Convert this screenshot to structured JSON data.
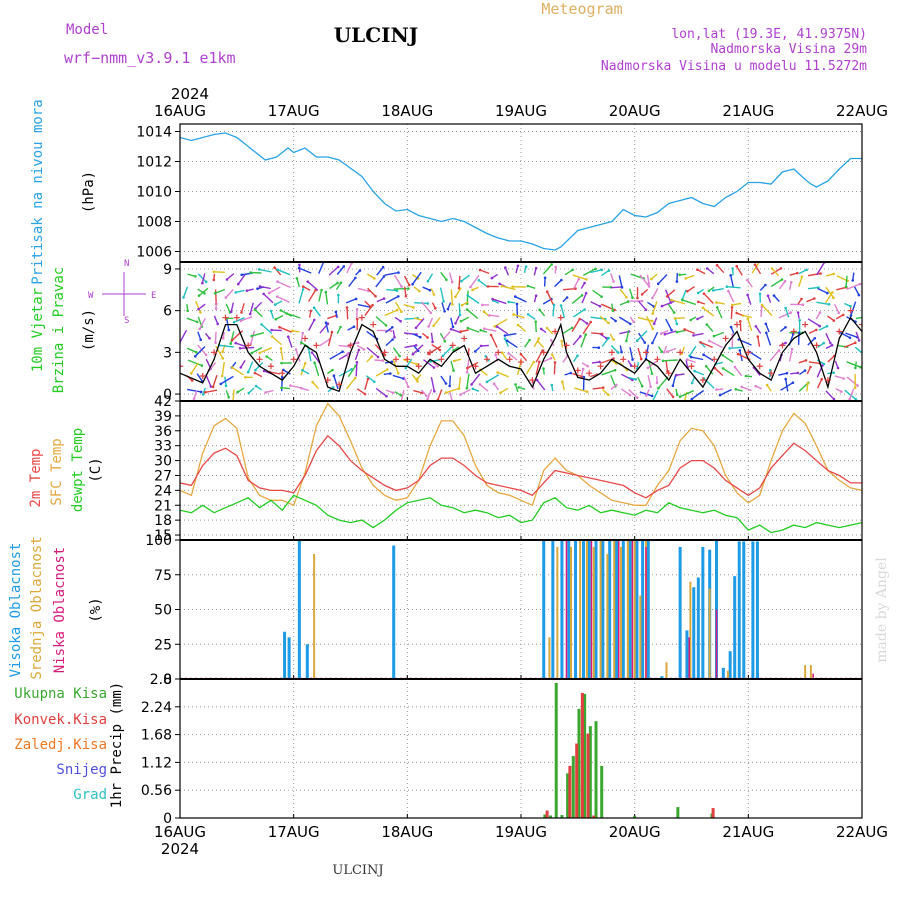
{
  "header": {
    "model_label": "Model",
    "model_name": "wrf−nmm_v3.9.1 e1km",
    "station": "ULCINJ",
    "product": "Meteogram",
    "location": "lon,lat (19.3E, 41.9375N)",
    "altitude": "Nadmorska Visina 29m",
    "model_altitude": "Nadmorska Visina u modelu 11.5272m",
    "footer_station": "ULCINJ",
    "watermark": "made by Angel"
  },
  "colors": {
    "pressure": "#29a3e6",
    "temp_2m": "#e84848",
    "temp_sfc": "#e6a840",
    "dewpoint": "#22cc22",
    "cloud_high": "#1e9be6",
    "cloud_mid": "#d9a838",
    "cloud_low": "#d61b7b",
    "precip_total": "#3aa830",
    "precip_conv": "#e04040",
    "precip_strat": "#f07828",
    "snow": "#5050e0",
    "hail": "#30c0c0",
    "header_purple": "#b040d0",
    "header_orange": "#e0b060"
  },
  "chart_data": {
    "type": "line",
    "year": "2024",
    "x_labels": [
      "16AUG",
      "17AUG",
      "18AUG",
      "19AUG",
      "20AUG",
      "21AUG",
      "22AUG"
    ],
    "x_range_days": [
      0,
      6
    ],
    "panels": [
      {
        "id": "pressure",
        "ylabel_left": "Pritisak na nivou mora",
        "unit": "(hPa)",
        "ylim": [
          1005.3,
          1014.5
        ],
        "yticks": [
          1006,
          1008,
          1010,
          1012,
          1014
        ],
        "series": [
          {
            "key": "pressure",
            "x": [
              0,
              0.1,
              0.3,
              0.4,
              0.5,
              0.6,
              0.7,
              0.75,
              0.85,
              0.95,
              1.0,
              1.1,
              1.2,
              1.3,
              1.4,
              1.6,
              1.7,
              1.8,
              1.9,
              2.0,
              2.1,
              2.3,
              2.4,
              2.5,
              2.6,
              2.7,
              2.8,
              2.9,
              3.0,
              3.1,
              3.2,
              3.3,
              3.35,
              3.5,
              3.6,
              3.7,
              3.8,
              3.9,
              4.0,
              4.1,
              4.2,
              4.3,
              4.4,
              4.5,
              4.6,
              4.7,
              4.8,
              4.9,
              5.0,
              5.1,
              5.2,
              5.3,
              5.4,
              5.5,
              5.55,
              5.6,
              5.7,
              5.8,
              5.9,
              6.0
            ],
            "y": [
              1013.6,
              1013.4,
              1013.8,
              1013.9,
              1013.6,
              1013.0,
              1012.4,
              1012.1,
              1012.3,
              1012.9,
              1012.6,
              1012.9,
              1012.3,
              1012.3,
              1012.1,
              1011.0,
              1010.0,
              1009.2,
              1008.7,
              1008.8,
              1008.4,
              1008.0,
              1008.2,
              1008.0,
              1007.6,
              1007.2,
              1006.9,
              1006.7,
              1006.7,
              1006.5,
              1006.2,
              1006.1,
              1006.3,
              1007.4,
              1007.6,
              1007.8,
              1008.0,
              1008.8,
              1008.4,
              1008.3,
              1008.6,
              1009.2,
              1009.4,
              1009.6,
              1009.2,
              1009.0,
              1009.6,
              1010.0,
              1010.6,
              1010.6,
              1010.5,
              1011.3,
              1011.5,
              1010.8,
              1010.5,
              1010.3,
              1010.7,
              1011.5,
              1012.2,
              1012.2
            ]
          }
        ]
      },
      {
        "id": "wind",
        "ylabel_left": [
          "10m Vjetar",
          "Brzina i Pravac"
        ],
        "unit": "(m/s)",
        "compass": {
          "w": "W",
          "e": "E",
          "n": "N",
          "s": "S"
        },
        "ylim": [
          -0.5,
          9.5
        ],
        "yticks": [
          0,
          3,
          6,
          9
        ],
        "series": [
          {
            "key": "wind_speed",
            "x": [
              0,
              0.2,
              0.3,
              0.4,
              0.5,
              0.6,
              0.7,
              0.8,
              0.9,
              1.0,
              1.1,
              1.2,
              1.3,
              1.4,
              1.5,
              1.6,
              1.7,
              1.8,
              1.9,
              2.0,
              2.1,
              2.2,
              2.3,
              2.4,
              2.5,
              2.6,
              2.7,
              2.8,
              2.9,
              3.0,
              3.1,
              3.2,
              3.3,
              3.35,
              3.4,
              3.5,
              3.6,
              3.7,
              3.8,
              3.9,
              4.0,
              4.1,
              4.2,
              4.3,
              4.4,
              4.5,
              4.6,
              4.7,
              4.8,
              4.9,
              5.0,
              5.1,
              5.2,
              5.3,
              5.4,
              5.5,
              5.6,
              5.7,
              5.8,
              5.9,
              6.0
            ],
            "y": [
              1.5,
              0.8,
              2.5,
              5.0,
              5.0,
              3.0,
              2.0,
              1.5,
              1.0,
              2.0,
              3.5,
              3.0,
              0.5,
              0.2,
              3.0,
              5.0,
              4.5,
              2.5,
              2.0,
              2.0,
              1.5,
              2.5,
              2.0,
              3.0,
              3.5,
              1.5,
              2.0,
              2.5,
              2.0,
              1.8,
              0.5,
              2.5,
              4.0,
              5.0,
              3.0,
              1.2,
              1.0,
              1.5,
              2.5,
              2.0,
              1.5,
              2.5,
              2.0,
              1.0,
              2.5,
              1.5,
              0.5,
              2.0,
              3.5,
              4.5,
              2.5,
              1.5,
              1.0,
              3.0,
              4.0,
              4.5,
              3.0,
              0.5,
              4.0,
              5.5,
              4.5
            ]
          }
        ]
      },
      {
        "id": "temperature",
        "ylabel_left": [
          "2m Temp",
          "SFC Temp",
          "dewpt Temp"
        ],
        "unit": "(C)",
        "ylim": [
          14,
          42
        ],
        "yticks": [
          15,
          18,
          21,
          24,
          27,
          30,
          33,
          36,
          39,
          42
        ],
        "series": [
          {
            "key": "temp_2m",
            "name": "2m Temp",
            "x": [
              0,
              0.1,
              0.2,
              0.3,
              0.4,
              0.5,
              0.6,
              0.7,
              0.8,
              0.9,
              1.0,
              1.1,
              1.2,
              1.3,
              1.4,
              1.5,
              1.6,
              1.7,
              1.8,
              1.9,
              2.0,
              2.1,
              2.2,
              2.3,
              2.4,
              2.5,
              2.6,
              2.7,
              2.8,
              2.9,
              3.0,
              3.1,
              3.2,
              3.3,
              3.4,
              3.5,
              3.6,
              3.7,
              3.8,
              3.9,
              4.0,
              4.1,
              4.2,
              4.3,
              4.4,
              4.5,
              4.6,
              4.7,
              4.8,
              4.9,
              5.0,
              5.1,
              5.2,
              5.3,
              5.4,
              5.5,
              5.6,
              5.7,
              5.8,
              5.9,
              6.0
            ],
            "y": [
              25.5,
              25.0,
              29.0,
              31.5,
              32.5,
              31.0,
              26.0,
              24.5,
              24.0,
              24.0,
              23.5,
              27.0,
              32.0,
              35.0,
              33.0,
              30.0,
              28.0,
              26.5,
              25.0,
              24.0,
              24.5,
              26.0,
              29.0,
              30.5,
              30.5,
              29.0,
              27.0,
              25.5,
              25.0,
              24.5,
              24.0,
              23.0,
              25.5,
              28.0,
              27.5,
              27.0,
              26.5,
              26.0,
              25.5,
              25.0,
              23.5,
              22.5,
              24.0,
              25.0,
              28.5,
              30.0,
              30.0,
              28.5,
              26.0,
              24.5,
              23.0,
              24.5,
              28.5,
              31.0,
              33.5,
              32.0,
              30.0,
              28.0,
              27.0,
              25.5,
              25.5
            ]
          },
          {
            "key": "temp_sfc",
            "name": "SFC Temp",
            "x": [
              0,
              0.1,
              0.2,
              0.3,
              0.4,
              0.5,
              0.6,
              0.7,
              0.8,
              0.9,
              1.0,
              1.1,
              1.2,
              1.3,
              1.4,
              1.5,
              1.6,
              1.7,
              1.8,
              1.9,
              2.0,
              2.1,
              2.2,
              2.3,
              2.4,
              2.5,
              2.6,
              2.7,
              2.8,
              2.9,
              3.0,
              3.1,
              3.2,
              3.3,
              3.4,
              3.5,
              3.6,
              3.7,
              3.8,
              3.9,
              4.0,
              4.1,
              4.2,
              4.3,
              4.4,
              4.5,
              4.6,
              4.7,
              4.8,
              4.9,
              5.0,
              5.1,
              5.2,
              5.3,
              5.4,
              5.5,
              5.6,
              5.7,
              5.8,
              5.9,
              6.0
            ],
            "y": [
              24.0,
              23.0,
              31.5,
              37.0,
              38.5,
              36.5,
              26.5,
              23.0,
              22.0,
              22.0,
              21.0,
              27.5,
              37.0,
              41.5,
              39.0,
              34.0,
              28.5,
              25.0,
              23.0,
              22.0,
              22.5,
              26.0,
              33.0,
              38.0,
              38.0,
              35.0,
              29.0,
              25.0,
              23.5,
              23.0,
              22.0,
              21.0,
              28.0,
              30.5,
              28.0,
              27.0,
              25.0,
              23.5,
              22.0,
              21.5,
              21.0,
              21.0,
              25.0,
              28.0,
              34.0,
              36.5,
              36.0,
              33.0,
              27.0,
              23.5,
              21.5,
              23.0,
              30.0,
              36.0,
              39.5,
              37.5,
              33.0,
              28.0,
              26.0,
              24.5,
              24.0
            ]
          },
          {
            "key": "dewpoint",
            "name": "dewpt Temp",
            "x": [
              0,
              0.1,
              0.2,
              0.3,
              0.4,
              0.5,
              0.6,
              0.7,
              0.8,
              0.9,
              1.0,
              1.1,
              1.2,
              1.3,
              1.4,
              1.5,
              1.6,
              1.7,
              1.8,
              1.9,
              2.0,
              2.1,
              2.2,
              2.3,
              2.4,
              2.5,
              2.6,
              2.7,
              2.8,
              2.9,
              3.0,
              3.1,
              3.2,
              3.3,
              3.4,
              3.5,
              3.6,
              3.7,
              3.8,
              3.9,
              4.0,
              4.1,
              4.2,
              4.3,
              4.4,
              4.5,
              4.6,
              4.7,
              4.8,
              4.9,
              5.0,
              5.1,
              5.2,
              5.3,
              5.4,
              5.5,
              5.6,
              5.7,
              5.8,
              5.9,
              6.0
            ],
            "y": [
              20.0,
              19.5,
              21.0,
              19.5,
              20.5,
              21.5,
              22.5,
              20.5,
              22.0,
              20.0,
              23.0,
              22.0,
              21.0,
              19.0,
              18.0,
              17.5,
              18.0,
              16.5,
              18.0,
              20.0,
              21.5,
              22.0,
              22.5,
              21.0,
              20.5,
              19.5,
              20.0,
              19.5,
              18.5,
              19.0,
              17.5,
              18.0,
              21.5,
              22.5,
              20.5,
              20.0,
              21.0,
              19.5,
              20.0,
              19.5,
              19.0,
              20.0,
              19.5,
              21.5,
              20.5,
              20.0,
              19.5,
              20.0,
              19.0,
              18.5,
              16.0,
              17.0,
              15.5,
              16.0,
              17.0,
              16.5,
              17.5,
              17.0,
              16.5,
              17.0,
              17.5
            ]
          }
        ]
      },
      {
        "id": "clouds",
        "ylabel_left": [
          "Visoka Oblacnost",
          "Srednja Oblacnost",
          "Niska Oblacnost"
        ],
        "unit": "(%)",
        "ylim": [
          0,
          100
        ],
        "yticks": [
          0,
          25,
          50,
          75,
          100
        ],
        "high": {
          "x": [
            0.92,
            0.96,
            1.05,
            1.12,
            1.88,
            3.2,
            3.28,
            3.36,
            3.42,
            3.48,
            3.55,
            3.6,
            3.66,
            3.72,
            3.78,
            3.84,
            3.9,
            3.96,
            4.02,
            4.07,
            4.12,
            4.24,
            4.4,
            4.46,
            4.52,
            4.56,
            4.6,
            4.66,
            4.72,
            4.78,
            4.84,
            4.88,
            4.92,
            4.96,
            5.04,
            5.08
          ],
          "y": [
            34,
            30,
            100,
            25,
            96,
            100,
            100,
            100,
            100,
            100,
            100,
            100,
            100,
            100,
            100,
            100,
            100,
            100,
            100,
            100,
            100,
            2,
            95,
            35,
            66,
            73,
            95,
            93,
            100,
            8,
            20,
            74,
            99,
            99,
            99,
            99
          ]
        },
        "mid": {
          "x": [
            1.18,
            3.25,
            3.32,
            3.44,
            3.52,
            3.58,
            3.64,
            3.7,
            3.76,
            3.82,
            3.88,
            3.94,
            4.0,
            4.05,
            4.1,
            4.28,
            4.49,
            4.66,
            4.82,
            5.5,
            5.55
          ],
          "y": [
            90,
            30,
            95,
            95,
            100,
            100,
            95,
            100,
            90,
            100,
            95,
            100,
            100,
            60,
            100,
            12,
            70,
            65,
            6,
            10,
            10
          ]
        },
        "low": {
          "x": [
            3.4,
            3.62,
            3.86,
            3.98,
            4.1,
            4.48,
            4.72,
            5.57
          ],
          "y": [
            100,
            100,
            100,
            100,
            95,
            30,
            50,
            4
          ]
        }
      },
      {
        "id": "precip",
        "ylabel_left": [
          "Ukupna Kisa",
          "Konvek.Kisa",
          "Zaledj.Kisa",
          "Snijeg",
          "Grad"
        ],
        "unit": "1hr Precip (mm)",
        "ylim": [
          0,
          2.8
        ],
        "yticks": [
          0,
          0.56,
          1.12,
          1.68,
          2.24,
          2.8
        ],
        "total": {
          "x": [
            3.21,
            3.26,
            3.31,
            3.36,
            3.41,
            3.46,
            3.51,
            3.56,
            3.61,
            3.66,
            3.71,
            4.0,
            4.38,
            4.68
          ],
          "y": [
            0.07,
            0.05,
            2.72,
            0.06,
            0.9,
            1.25,
            2.2,
            2.5,
            1.85,
            1.95,
            1.05,
            0.04,
            0.22,
            0.09
          ]
        },
        "conv": {
          "x": [
            3.23,
            3.43,
            3.49,
            3.54,
            3.59,
            3.64,
            4.69
          ],
          "y": [
            0.15,
            1.05,
            1.5,
            2.52,
            1.7,
            0.05,
            0.2
          ]
        }
      }
    ]
  }
}
